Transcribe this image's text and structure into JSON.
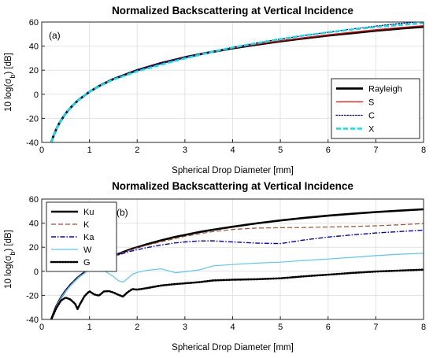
{
  "chart_data": [
    {
      "type": "line",
      "title": "Normalized Backscattering at Vertical Incidence",
      "panel_label": "(a)",
      "xlabel": "Spherical Drop Diameter [mm]",
      "ylabel": "10 log(σ_b) [dB]",
      "xlim": [
        0,
        8
      ],
      "ylim": [
        -40,
        60
      ],
      "xticks": [
        0,
        1,
        2,
        3,
        4,
        5,
        6,
        7,
        8
      ],
      "yticks": [
        -40,
        -20,
        0,
        20,
        40,
        60
      ],
      "grid": true,
      "legend_position": "lower-right",
      "x": [
        0.2,
        0.25,
        0.3,
        0.35,
        0.4,
        0.5,
        0.6,
        0.7,
        0.8,
        1.0,
        1.2,
        1.5,
        2.0,
        2.5,
        3.0,
        3.5,
        4.0,
        4.5,
        5.0,
        5.5,
        6.0,
        6.5,
        7.0,
        7.5,
        8.0
      ],
      "series": [
        {
          "name": "Rayleigh",
          "color": "#000000",
          "style": "solid",
          "values": [
            -40.0,
            -34.2,
            -29.4,
            -25.4,
            -21.9,
            -16.1,
            -11.3,
            -7.3,
            -3.8,
            2.0,
            6.8,
            12.6,
            20.0,
            25.9,
            30.7,
            34.7,
            38.2,
            41.2,
            44.0,
            46.5,
            48.8,
            50.8,
            52.8,
            54.6,
            56.0
          ]
        },
        {
          "name": "S",
          "color": "#ff0000",
          "style": "solid",
          "values": [
            -40.0,
            -34.2,
            -29.4,
            -25.4,
            -21.9,
            -16.1,
            -11.3,
            -7.3,
            -3.8,
            2.0,
            6.8,
            12.6,
            20.0,
            25.9,
            30.7,
            34.8,
            38.4,
            41.6,
            44.4,
            47.0,
            49.4,
            51.6,
            53.6,
            55.4,
            57.0
          ]
        },
        {
          "name": "C",
          "color": "#00008b",
          "style": "dotted",
          "values": [
            -40.0,
            -34.2,
            -29.4,
            -25.4,
            -21.9,
            -16.1,
            -11.3,
            -7.3,
            -3.8,
            2.0,
            6.8,
            12.6,
            20.0,
            25.8,
            30.7,
            35.0,
            39.0,
            42.6,
            45.8,
            48.8,
            51.6,
            54.2,
            56.6,
            58.8,
            60.5
          ]
        },
        {
          "name": "X",
          "color": "#00e5ee",
          "style": "dashed",
          "values": [
            -40.0,
            -34.2,
            -29.4,
            -25.4,
            -21.9,
            -16.1,
            -11.3,
            -7.3,
            -3.8,
            2.0,
            6.6,
            12.2,
            19.0,
            24.6,
            29.8,
            34.6,
            38.8,
            42.4,
            45.8,
            48.8,
            51.4,
            53.8,
            55.8,
            57.6,
            59.0
          ]
        }
      ]
    },
    {
      "type": "line",
      "title": "Normalized Backscattering at Vertical Incidence",
      "panel_label": "(b)",
      "xlabel": "Spherical Drop Diameter [mm]",
      "ylabel": "10 log(σ_b) [dB]",
      "xlim": [
        0,
        8
      ],
      "ylim": [
        -40,
        60
      ],
      "xticks": [
        0,
        1,
        2,
        3,
        4,
        5,
        6,
        7,
        8
      ],
      "yticks": [
        -40,
        -20,
        0,
        20,
        40,
        60
      ],
      "grid": true,
      "legend_position": "top-left",
      "x": [
        0.2,
        0.3,
        0.4,
        0.5,
        0.6,
        0.7,
        0.75,
        0.8,
        0.9,
        1.0,
        1.1,
        1.2,
        1.3,
        1.4,
        1.5,
        1.6,
        1.7,
        1.8,
        1.9,
        2.0,
        2.2,
        2.5,
        2.8,
        3.0,
        3.3,
        3.6,
        4.0,
        4.5,
        5.0,
        5.5,
        6.0,
        6.5,
        7.0,
        7.5,
        8.0
      ],
      "series": [
        {
          "name": "Ku",
          "color": "#000000",
          "style": "solid",
          "values": [
            -40.0,
            -29.4,
            -21.9,
            -16.1,
            -11.3,
            -7.3,
            -5.4,
            -3.8,
            -0.8,
            2.0,
            4.5,
            6.8,
            8.9,
            10.8,
            12.6,
            14.3,
            15.9,
            17.4,
            18.8,
            20.0,
            22.4,
            25.7,
            28.6,
            30.2,
            32.6,
            34.6,
            37.0,
            39.8,
            42.2,
            44.4,
            46.2,
            47.8,
            49.2,
            50.4,
            51.5
          ]
        },
        {
          "name": "K",
          "color": "#a0522d",
          "style": "dashed",
          "values": [
            -40.0,
            -29.4,
            -21.9,
            -16.1,
            -11.3,
            -7.3,
            -5.4,
            -3.8,
            -0.8,
            2.0,
            4.5,
            6.8,
            8.8,
            10.7,
            12.5,
            14.1,
            15.6,
            17.0,
            18.3,
            19.5,
            21.6,
            24.5,
            27.2,
            29.0,
            31.2,
            33.0,
            34.8,
            35.9,
            36.2,
            36.4,
            36.8,
            37.2,
            37.8,
            38.6,
            39.6
          ]
        },
        {
          "name": "Ka",
          "color": "#0000cd",
          "style": "dashdot",
          "values": [
            -40.0,
            -29.4,
            -21.9,
            -16.1,
            -11.3,
            -7.3,
            -5.4,
            -3.8,
            -0.8,
            2.0,
            4.4,
            6.6,
            8.6,
            10.4,
            12.0,
            13.5,
            14.8,
            16.0,
            17.0,
            18.0,
            19.6,
            21.8,
            23.6,
            24.4,
            25.2,
            25.3,
            24.4,
            23.4,
            23.0,
            26.0,
            28.4,
            30.2,
            31.8,
            33.0,
            34.2
          ]
        },
        {
          "name": "W",
          "color": "#5bc8f0",
          "style": "solid",
          "values": [
            -40.0,
            -29.6,
            -22.2,
            -16.6,
            -11.8,
            -7.8,
            -5.9,
            -4.4,
            -1.4,
            1.4,
            2.8,
            2.0,
            0.6,
            -1.8,
            -4.2,
            -7.6,
            -9.0,
            -6.0,
            -2.4,
            -1.0,
            0.8,
            2.0,
            -1.2,
            -0.4,
            1.2,
            4.6,
            5.6,
            6.8,
            7.6,
            9.0,
            10.2,
            11.6,
            13.0,
            14.2,
            15.0
          ]
        },
        {
          "name": "G",
          "color": "#000000",
          "style": "dotted",
          "values": [
            -40.0,
            -31.0,
            -24.4,
            -21.8,
            -23.4,
            -27.0,
            -31.4,
            -27.4,
            -20.4,
            -16.6,
            -19.2,
            -20.2,
            -16.8,
            -16.4,
            -17.6,
            -19.4,
            -21.0,
            -17.4,
            -14.8,
            -15.2,
            -14.0,
            -11.8,
            -10.6,
            -10.0,
            -9.0,
            -7.6,
            -7.0,
            -6.6,
            -5.8,
            -4.2,
            -2.8,
            -1.4,
            -0.2,
            0.6,
            1.4
          ]
        }
      ]
    }
  ]
}
